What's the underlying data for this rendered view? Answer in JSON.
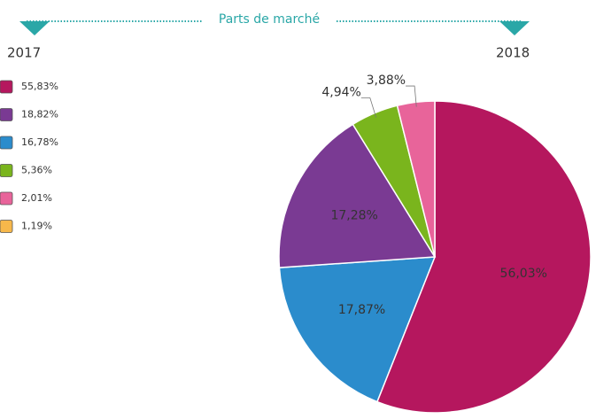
{
  "title": "Parts de marché",
  "chart_data": [
    {
      "type": "swatches",
      "title": "2017",
      "colors": [
        "#b5175e",
        "#7a3a93",
        "#2b8ccc",
        "#7ab51d",
        "#e8649a",
        "#f7b84b"
      ],
      "values": [
        55.83,
        18.82,
        16.78,
        5.36,
        2.01,
        1.19
      ],
      "value_labels": [
        "55,83%",
        "18,82%",
        "16,78%",
        "5,36%",
        "2,01%",
        "1,19%"
      ]
    },
    {
      "type": "pie",
      "title": "2018",
      "colors": [
        "#b5175e",
        "#2b8ccc",
        "#7a3a93",
        "#7ab51d",
        "#e8649a"
      ],
      "values": [
        56.03,
        17.87,
        17.28,
        4.94,
        3.88
      ],
      "value_labels": [
        "56,03%",
        "17,87%",
        "17,28%",
        "4,94%",
        "3,88%"
      ]
    }
  ]
}
